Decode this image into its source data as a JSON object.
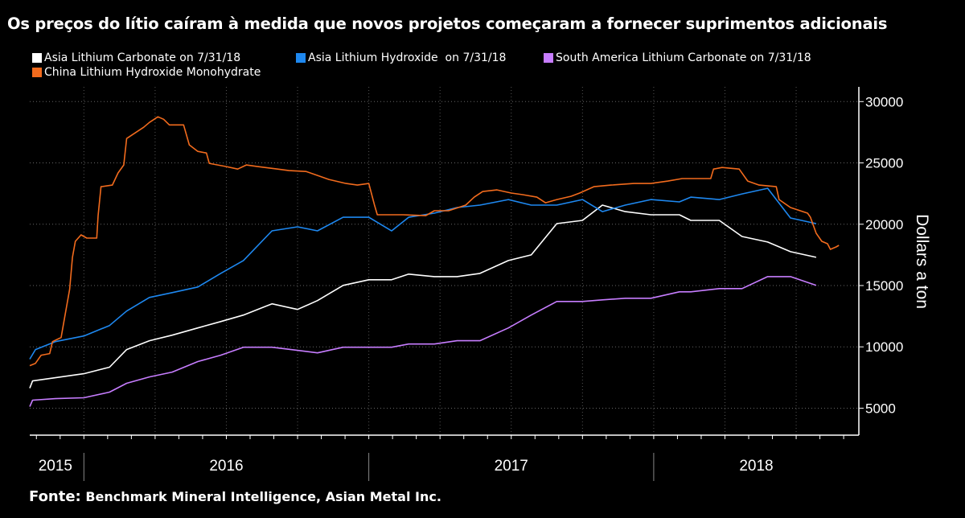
{
  "title": "Os preços do lítio caíram à medida que novos projetos começaram a fornecer suprimentos adicionais",
  "source_label": "Fonte:",
  "source_text": "Benchmark Mineral Intelligence, Asian Metal Inc.",
  "chart_data": {
    "type": "line",
    "title": "Os preços do lítio caíram à medida que novos projetos começaram a fornecer suprimentos adicionais",
    "xlabel": "",
    "ylabel": "Dollars a ton",
    "ylim": [
      2800,
      31200
    ],
    "xlim": [
      2015.81,
      2018.72
    ],
    "y_ticks": [
      5000,
      10000,
      15000,
      20000,
      25000,
      30000
    ],
    "x_year_labels": [
      {
        "label": "2015",
        "center": 2015.9
      },
      {
        "label": "2016",
        "center": 2016.5
      },
      {
        "label": "2017",
        "center": 2017.5
      },
      {
        "label": "2018",
        "center": 2018.36
      }
    ],
    "grid": true,
    "legend_position": "top-left",
    "series": [
      {
        "name": "Asia Lithium Carbonate on 7/31/18",
        "color": "#ffffff",
        "points": [
          [
            2015.81,
            6630
          ],
          [
            2015.82,
            7220
          ],
          [
            2015.9,
            7480
          ],
          [
            2016.0,
            7810
          ],
          [
            2016.09,
            8340
          ],
          [
            2016.15,
            9780
          ],
          [
            2016.23,
            10500
          ],
          [
            2016.31,
            10950
          ],
          [
            2016.4,
            11540
          ],
          [
            2016.48,
            12060
          ],
          [
            2016.56,
            12590
          ],
          [
            2016.66,
            13510
          ],
          [
            2016.75,
            13050
          ],
          [
            2016.82,
            13770
          ],
          [
            2016.91,
            15010
          ],
          [
            2017.0,
            15470
          ],
          [
            2017.08,
            15470
          ],
          [
            2017.14,
            15930
          ],
          [
            2017.23,
            15730
          ],
          [
            2017.31,
            15730
          ],
          [
            2017.39,
            15990
          ],
          [
            2017.49,
            17040
          ],
          [
            2017.57,
            17500
          ],
          [
            2017.66,
            20050
          ],
          [
            2017.75,
            20310
          ],
          [
            2017.82,
            21560
          ],
          [
            2017.9,
            21030
          ],
          [
            2017.99,
            20770
          ],
          [
            2018.09,
            20770
          ],
          [
            2018.13,
            20310
          ],
          [
            2018.23,
            20310
          ],
          [
            2018.31,
            19000
          ],
          [
            2018.4,
            18550
          ],
          [
            2018.48,
            17760
          ],
          [
            2018.57,
            17300
          ]
        ]
      },
      {
        "name": "Asia Lithium Hydroxide  on 7/31/18",
        "color": "#1e88f0",
        "points": [
          [
            2015.81,
            9000
          ],
          [
            2015.83,
            9780
          ],
          [
            2015.9,
            10430
          ],
          [
            2016.0,
            10890
          ],
          [
            2016.09,
            11740
          ],
          [
            2016.15,
            12920
          ],
          [
            2016.23,
            14030
          ],
          [
            2016.31,
            14420
          ],
          [
            2016.4,
            14880
          ],
          [
            2016.48,
            15990
          ],
          [
            2016.56,
            17040
          ],
          [
            2016.66,
            19460
          ],
          [
            2016.75,
            19790
          ],
          [
            2016.82,
            19460
          ],
          [
            2016.91,
            20570
          ],
          [
            2017.0,
            20570
          ],
          [
            2017.08,
            19460
          ],
          [
            2017.14,
            20570
          ],
          [
            2017.23,
            20900
          ],
          [
            2017.31,
            21360
          ],
          [
            2017.39,
            21560
          ],
          [
            2017.49,
            22010
          ],
          [
            2017.57,
            21560
          ],
          [
            2017.66,
            21560
          ],
          [
            2017.75,
            22010
          ],
          [
            2017.82,
            21030
          ],
          [
            2017.9,
            21560
          ],
          [
            2017.99,
            22010
          ],
          [
            2018.09,
            21820
          ],
          [
            2018.13,
            22210
          ],
          [
            2018.23,
            22010
          ],
          [
            2018.31,
            22470
          ],
          [
            2018.4,
            22930
          ],
          [
            2018.48,
            20510
          ],
          [
            2018.57,
            20050
          ]
        ]
      },
      {
        "name": "South America Lithium Carbonate on 7/31/18",
        "color": "#c77dff",
        "points": [
          [
            2015.81,
            5130
          ],
          [
            2015.82,
            5650
          ],
          [
            2015.9,
            5780
          ],
          [
            2016.0,
            5850
          ],
          [
            2016.09,
            6310
          ],
          [
            2016.15,
            7030
          ],
          [
            2016.23,
            7550
          ],
          [
            2016.31,
            7940
          ],
          [
            2016.4,
            8800
          ],
          [
            2016.48,
            9320
          ],
          [
            2016.56,
            9970
          ],
          [
            2016.66,
            9970
          ],
          [
            2016.75,
            9710
          ],
          [
            2016.82,
            9510
          ],
          [
            2016.91,
            9970
          ],
          [
            2017.0,
            9970
          ],
          [
            2017.08,
            9970
          ],
          [
            2017.14,
            10230
          ],
          [
            2017.23,
            10230
          ],
          [
            2017.31,
            10500
          ],
          [
            2017.39,
            10500
          ],
          [
            2017.49,
            11540
          ],
          [
            2017.57,
            12590
          ],
          [
            2017.66,
            13700
          ],
          [
            2017.75,
            13700
          ],
          [
            2017.82,
            13830
          ],
          [
            2017.9,
            13960
          ],
          [
            2017.99,
            13960
          ],
          [
            2018.09,
            14490
          ],
          [
            2018.13,
            14490
          ],
          [
            2018.23,
            14750
          ],
          [
            2018.31,
            14750
          ],
          [
            2018.4,
            15730
          ],
          [
            2018.48,
            15730
          ],
          [
            2018.57,
            15010
          ]
        ]
      },
      {
        "name": "China Lithium Hydroxide Monohydrate",
        "color": "#f26b1d",
        "points": [
          [
            2015.81,
            8470
          ],
          [
            2015.83,
            8660
          ],
          [
            2015.85,
            9320
          ],
          [
            2015.88,
            9450
          ],
          [
            2015.89,
            10430
          ],
          [
            2015.92,
            10760
          ],
          [
            2015.93,
            12070
          ],
          [
            2015.95,
            14690
          ],
          [
            2015.96,
            17300
          ],
          [
            2015.97,
            18610
          ],
          [
            2015.99,
            19130
          ],
          [
            2016.01,
            18870
          ],
          [
            2016.045,
            18870
          ],
          [
            2016.05,
            20700
          ],
          [
            2016.06,
            23060
          ],
          [
            2016.1,
            23190
          ],
          [
            2016.12,
            24180
          ],
          [
            2016.14,
            24830
          ],
          [
            2016.15,
            26990
          ],
          [
            2016.18,
            27450
          ],
          [
            2016.21,
            27910
          ],
          [
            2016.23,
            28300
          ],
          [
            2016.26,
            28760
          ],
          [
            2016.28,
            28560
          ],
          [
            2016.3,
            28100
          ],
          [
            2016.35,
            28100
          ],
          [
            2016.37,
            26470
          ],
          [
            2016.4,
            25940
          ],
          [
            2016.43,
            25810
          ],
          [
            2016.44,
            24960
          ],
          [
            2016.5,
            24700
          ],
          [
            2016.54,
            24500
          ],
          [
            2016.57,
            24830
          ],
          [
            2016.61,
            24700
          ],
          [
            2016.68,
            24500
          ],
          [
            2016.72,
            24370
          ],
          [
            2016.78,
            24300
          ],
          [
            2016.82,
            23980
          ],
          [
            2016.86,
            23650
          ],
          [
            2016.92,
            23320
          ],
          [
            2016.96,
            23190
          ],
          [
            2017.0,
            23320
          ],
          [
            2017.02,
            21560
          ],
          [
            2017.03,
            20770
          ],
          [
            2017.12,
            20770
          ],
          [
            2017.2,
            20700
          ],
          [
            2017.23,
            21100
          ],
          [
            2017.28,
            21100
          ],
          [
            2017.34,
            21560
          ],
          [
            2017.37,
            22210
          ],
          [
            2017.4,
            22670
          ],
          [
            2017.45,
            22800
          ],
          [
            2017.5,
            22540
          ],
          [
            2017.54,
            22410
          ],
          [
            2017.59,
            22210
          ],
          [
            2017.62,
            21750
          ],
          [
            2017.66,
            22010
          ],
          [
            2017.71,
            22280
          ],
          [
            2017.74,
            22540
          ],
          [
            2017.79,
            23060
          ],
          [
            2017.85,
            23190
          ],
          [
            2017.93,
            23320
          ],
          [
            2017.99,
            23320
          ],
          [
            2018.05,
            23520
          ],
          [
            2018.1,
            23720
          ],
          [
            2018.16,
            23720
          ],
          [
            2018.2,
            23720
          ],
          [
            2018.21,
            24500
          ],
          [
            2018.24,
            24630
          ],
          [
            2018.3,
            24500
          ],
          [
            2018.33,
            23520
          ],
          [
            2018.37,
            23190
          ],
          [
            2018.43,
            23060
          ],
          [
            2018.44,
            22010
          ],
          [
            2018.48,
            21360
          ],
          [
            2018.54,
            20900
          ],
          [
            2018.55,
            20570
          ],
          [
            2018.57,
            19270
          ],
          [
            2018.59,
            18610
          ],
          [
            2018.61,
            18410
          ],
          [
            2018.62,
            17950
          ],
          [
            2018.64,
            18150
          ],
          [
            2018.65,
            18280
          ]
        ]
      }
    ]
  }
}
